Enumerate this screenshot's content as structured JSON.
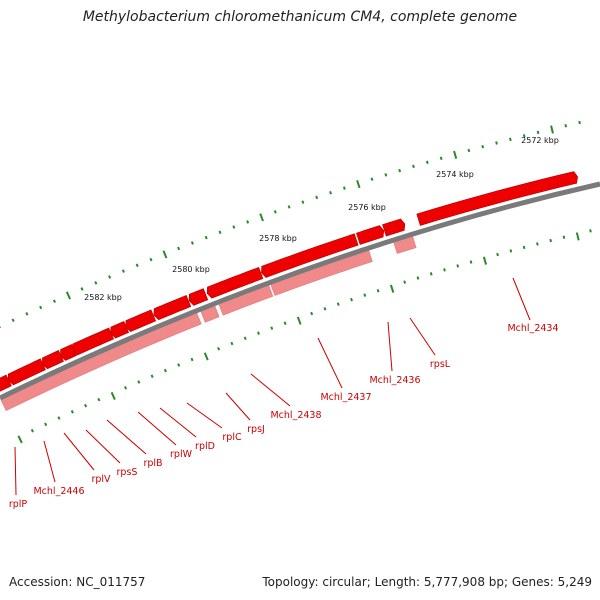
{
  "title": "Methylobacterium chloromethanicum CM4, complete genome",
  "footer": {
    "accession": "Accession: NC_011757",
    "summary": "Topology: circular; Length: 5,777,908 bp; Genes: 5,249"
  },
  "colors": {
    "backbone": "#7a7a7a",
    "gene_strand1": "#ee0000",
    "gene_strand2": "#f08a8a",
    "tick": "#2a8a2a",
    "label": "#cc0000",
    "leader": "#cc0000"
  },
  "scale": {
    "unit": "kbp",
    "labels": [
      "2572 kbp",
      "2574 kbp",
      "2576 kbp",
      "2578 kbp",
      "2580 kbp",
      "2582 kbp"
    ]
  },
  "gene_labels": [
    "Mchl_2434",
    "rpsL",
    "Mchl_2436",
    "Mchl_2437",
    "Mchl_2438",
    "rpsJ",
    "rplC",
    "rplD",
    "rplW",
    "rplB",
    "rpsS",
    "rplV",
    "Mchl_2446",
    "rplP"
  ]
}
